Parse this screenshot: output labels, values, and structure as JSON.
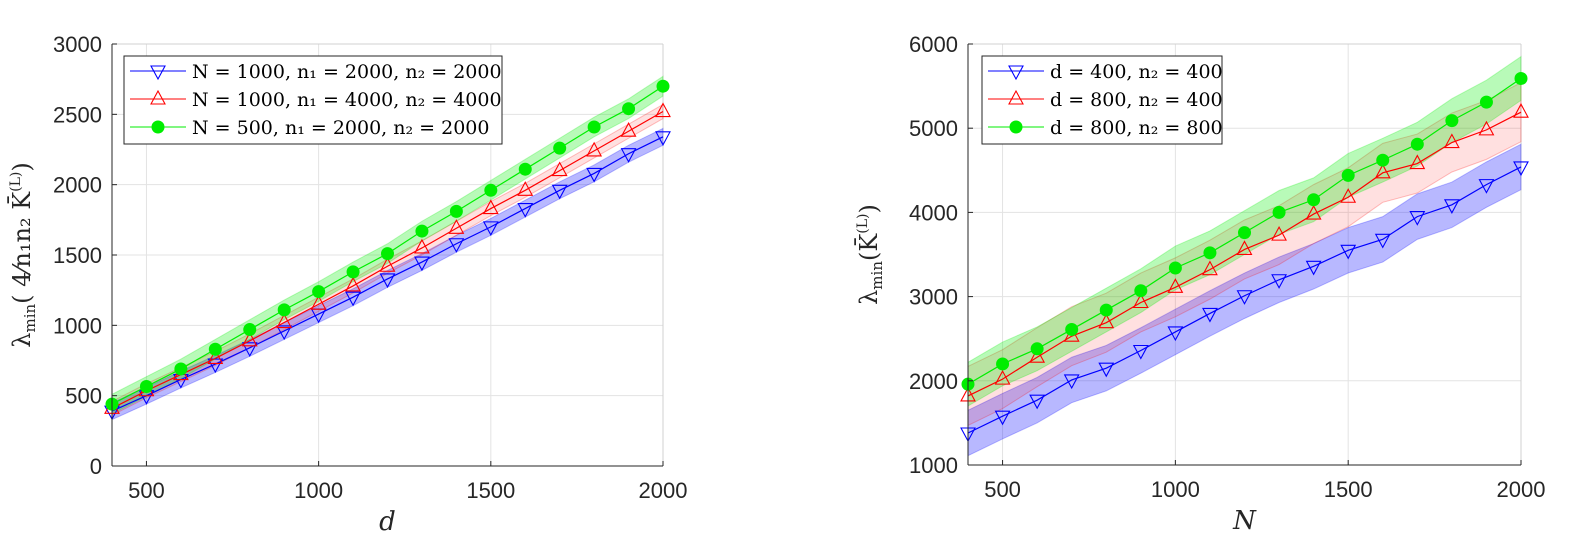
{
  "chart_data": [
    {
      "type": "line",
      "title": "",
      "xlabel": "d",
      "ylabel": "λmin( 4/(n1 n2) K̄^(L) )",
      "xlim": [
        400,
        2000
      ],
      "ylim": [
        0,
        3000
      ],
      "xticks": [
        500,
        1000,
        1500,
        2000
      ],
      "yticks": [
        0,
        500,
        1000,
        1500,
        2000,
        2500,
        3000
      ],
      "grid": true,
      "legend_position": "upper left",
      "x": [
        400,
        500,
        600,
        700,
        800,
        900,
        1000,
        1100,
        1200,
        1300,
        1400,
        1500,
        1600,
        1700,
        1800,
        1900,
        2000
      ],
      "series": [
        {
          "name": "N = 1000, n1 = 2000, n2 = 2000",
          "color": "#0000ff",
          "marker": "triangle-down",
          "values": [
            390,
            500,
            615,
            725,
            840,
            960,
            1080,
            1200,
            1330,
            1450,
            1580,
            1700,
            1830,
            1960,
            2080,
            2220,
            2340
          ],
          "band": 60
        },
        {
          "name": "N = 1000, n1 = 4000, n2 = 4000",
          "color": "#ff0000",
          "marker": "triangle-up",
          "values": [
            410,
            535,
            650,
            765,
            890,
            1020,
            1150,
            1280,
            1420,
            1550,
            1690,
            1830,
            1960,
            2100,
            2240,
            2380,
            2520
          ],
          "band": 50
        },
        {
          "name": "N = 500, n1 = 2000, n2 = 2000",
          "color": "#00ee00",
          "marker": "circle",
          "values": [
            440,
            565,
            690,
            830,
            970,
            1110,
            1240,
            1380,
            1510,
            1670,
            1810,
            1960,
            2110,
            2260,
            2410,
            2540,
            2700
          ],
          "band": 70
        }
      ]
    },
    {
      "type": "line",
      "title": "",
      "xlabel": "N",
      "ylabel": "λmin( K̄^(L) )",
      "xlim": [
        400,
        2000
      ],
      "ylim": [
        1000,
        6000
      ],
      "xticks": [
        500,
        1000,
        1500,
        2000
      ],
      "yticks": [
        1000,
        2000,
        3000,
        4000,
        5000,
        6000
      ],
      "grid": true,
      "legend_position": "upper left",
      "x": [
        400,
        500,
        600,
        700,
        800,
        900,
        1000,
        1100,
        1200,
        1300,
        1400,
        1500,
        1600,
        1700,
        1800,
        1900,
        2000
      ],
      "series": [
        {
          "name": "d = 400, n2 = 400",
          "color": "#0000ff",
          "marker": "triangle-down",
          "values": [
            1380,
            1580,
            1770,
            2010,
            2150,
            2360,
            2580,
            2800,
            3010,
            3200,
            3360,
            3550,
            3680,
            3950,
            4090,
            4330,
            4540
          ],
          "band": 270
        },
        {
          "name": "d = 800, n2 = 400",
          "color": "#ff0000",
          "marker": "triangle-up",
          "values": [
            1820,
            2020,
            2280,
            2530,
            2690,
            2930,
            3110,
            3320,
            3560,
            3730,
            3980,
            4180,
            4470,
            4580,
            4830,
            4980,
            5190
          ],
          "band": 350
        },
        {
          "name": "d = 800, n2 = 800",
          "color": "#00ee00",
          "marker": "circle",
          "values": [
            1960,
            2200,
            2380,
            2610,
            2840,
            3070,
            3340,
            3520,
            3760,
            4000,
            4150,
            4440,
            4620,
            4810,
            5090,
            5310,
            5590
          ],
          "band": 260
        }
      ]
    }
  ],
  "panels": [
    {
      "xlabel": "d",
      "ylabel_main": "λ",
      "ylabel_sub": "min",
      "ylabel_rest": "( 4⁄n₁n₂ K̄",
      "ylabel_sup": "(L)",
      "legend": [
        "N = 1000, n₁ = 2000, n₂ = 2000",
        "N = 1000, n₁ = 4000, n₂ = 4000",
        "N = 500, n₁ = 2000, n₂ = 2000"
      ]
    },
    {
      "xlabel": "N",
      "ylabel_main": "λ",
      "ylabel_sub": "min",
      "ylabel_rest": "(K̄",
      "ylabel_sup": "(L)",
      "legend": [
        "d = 400, n₂ = 400",
        "d = 800, n₂ = 400",
        "d = 800, n₂ = 800"
      ]
    }
  ]
}
